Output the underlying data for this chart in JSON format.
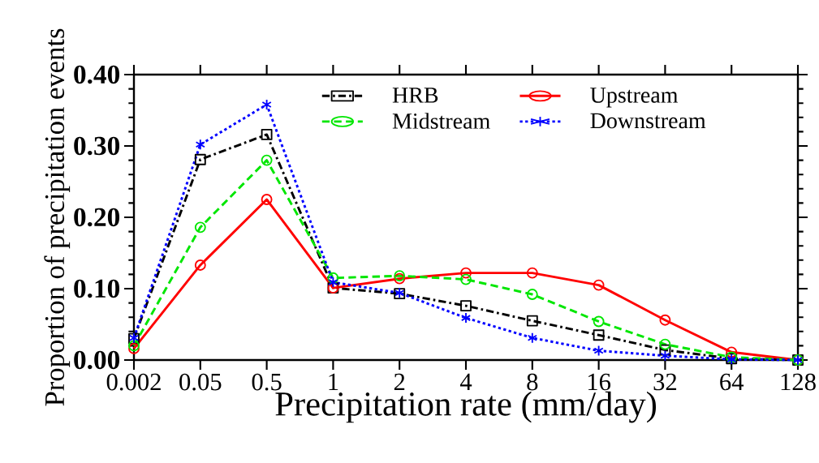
{
  "chart_data": {
    "type": "line",
    "xlabel": "Precipitation rate (mm/day)",
    "ylabel": "Proportion of precipitation events",
    "categories": [
      "0.002",
      "0.05",
      "0.5",
      "1",
      "2",
      "4",
      "8",
      "16",
      "32",
      "64",
      "128"
    ],
    "series": [
      {
        "name": "HRB",
        "color": "#000000",
        "marker": "square",
        "line_style": "dashdot",
        "values": [
          0.03,
          0.281,
          0.316,
          0.101,
          0.093,
          0.076,
          0.055,
          0.035,
          0.014,
          0.002,
          0.0
        ]
      },
      {
        "name": "Upstream",
        "color": "#ff0000",
        "marker": "circle",
        "line_style": "solid",
        "values": [
          0.016,
          0.133,
          0.225,
          0.101,
          0.114,
          0.122,
          0.122,
          0.105,
          0.056,
          0.011,
          0.0
        ]
      },
      {
        "name": "Midstream",
        "color": "#00e600",
        "marker": "circle",
        "line_style": "dashed",
        "values": [
          0.02,
          0.186,
          0.28,
          0.115,
          0.118,
          0.113,
          0.092,
          0.054,
          0.022,
          0.004,
          0.0
        ]
      },
      {
        "name": "Downstream",
        "color": "#0000ff",
        "marker": "cross",
        "line_style": "dotted",
        "values": [
          0.031,
          0.302,
          0.358,
          0.109,
          0.094,
          0.059,
          0.031,
          0.013,
          0.006,
          0.001,
          0.0
        ]
      }
    ],
    "ylim": [
      0,
      0.4
    ],
    "yticks": [
      {
        "value": 0,
        "label": "0.00"
      },
      {
        "value": 0.1,
        "label": "0.10"
      },
      {
        "value": 0.2,
        "label": "0.20"
      },
      {
        "value": 0.3,
        "label": "0.30"
      },
      {
        "value": 0.4,
        "label": "0.40"
      }
    ],
    "grid": false,
    "legend": "top right"
  }
}
